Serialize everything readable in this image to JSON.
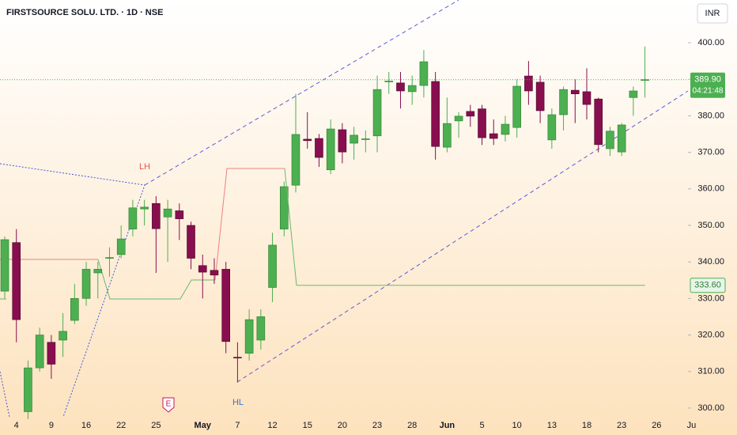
{
  "chart_data": {
    "type": "candlestick",
    "title": "FIRSTSOURCE SOLU. LTD. · 1D · NSE",
    "currency": "INR",
    "categories": [
      null,
      "4",
      null,
      null,
      "9",
      null,
      null,
      "16",
      null,
      null,
      "22",
      null,
      null,
      "25",
      null,
      null,
      null,
      "May",
      null,
      null,
      "7",
      null,
      null,
      "12",
      null,
      null,
      "15",
      null,
      null,
      "20",
      null,
      null,
      "23",
      null,
      null,
      "28",
      null,
      null,
      "Jun",
      null,
      null,
      "5",
      null,
      null,
      "10",
      null,
      null,
      "13",
      null,
      null,
      "18",
      null,
      null,
      "23",
      null,
      null,
      "26",
      null,
      null,
      "Ju"
    ],
    "open": [
      332,
      345.3,
      299,
      311,
      318,
      318.6,
      324,
      330,
      337,
      341,
      342,
      349,
      354.5,
      356,
      352.3,
      354,
      350,
      339,
      337.7,
      338,
      313.9,
      315,
      318.6,
      333,
      349,
      361,
      373.6,
      373.8,
      365.2,
      376.2,
      372.5,
      373.6,
      374.5,
      389.3,
      389,
      386.6,
      388.3,
      389.4,
      371.4,
      378.6,
      381.2,
      381.9,
      375.1,
      374.9,
      376.8,
      390.9,
      389.2,
      373.4,
      380.3,
      387,
      386.6,
      384.6,
      371,
      370.1,
      385,
      389.8,
      null,
      null,
      null,
      null
    ],
    "high": [
      347,
      349,
      313,
      322,
      320,
      326,
      334,
      340,
      340,
      344,
      350,
      357,
      357,
      358,
      357,
      356,
      351,
      342,
      341,
      340,
      318,
      327,
      327,
      348,
      362,
      386,
      381,
      375,
      379,
      378,
      377,
      376,
      391,
      392,
      392,
      391,
      398,
      392,
      385,
      381,
      383,
      383,
      379,
      380,
      390,
      395,
      391,
      382,
      388,
      390,
      393,
      385,
      377,
      378,
      388,
      399,
      null,
      null,
      null,
      null
    ],
    "low": [
      330,
      318,
      297,
      310,
      308,
      314,
      323,
      328,
      330,
      336,
      341,
      347,
      350,
      337,
      340,
      346,
      338,
      330,
      334,
      315,
      307,
      313,
      316,
      329,
      347,
      359,
      371,
      366,
      364,
      367,
      368,
      370,
      370,
      386,
      382,
      383,
      385,
      368,
      370,
      374,
      377,
      372,
      372,
      373,
      374,
      383,
      378,
      371,
      376,
      378,
      379,
      370,
      369,
      369,
      380,
      385,
      null,
      null,
      null,
      null
    ],
    "close": [
      346.1,
      324.2,
      311,
      320,
      312,
      321,
      330,
      338,
      338,
      341.2,
      346.3,
      354.8,
      355,
      349.1,
      354.5,
      351.8,
      341,
      337.2,
      336.4,
      318.2,
      313.8,
      324.2,
      325,
      344.6,
      360.6,
      374.9,
      373.2,
      368.6,
      376.4,
      370.1,
      374.7,
      373.7,
      387.2,
      389.5,
      386.8,
      388.3,
      394.8,
      371.6,
      377.9,
      379.9,
      379.9,
      374,
      373.8,
      377.7,
      388.1,
      386.8,
      381.4,
      380.3,
      387.2,
      386,
      383.1,
      372.1,
      375.8,
      377.5,
      386.8,
      389.9,
      null,
      null,
      null,
      null
    ],
    "up_color": "#4caf50",
    "down_color": "#880e4f",
    "ylim": [
      297.6,
      411.7
    ],
    "yticks": [
      {
        "value": 300,
        "label": "300.00"
      },
      {
        "value": 310,
        "label": "310.00"
      },
      {
        "value": 320,
        "label": "320.00"
      },
      {
        "value": 330,
        "label": "330.00"
      },
      {
        "value": 340,
        "label": "340.00"
      },
      {
        "value": 350,
        "label": "350.00"
      },
      {
        "value": 360,
        "label": "360.00"
      },
      {
        "value": 370,
        "label": "370.00"
      },
      {
        "value": 380,
        "label": "380.00"
      },
      {
        "value": 390,
        "label": "390.00"
      },
      {
        "value": 400,
        "label": "400.00"
      }
    ],
    "last_price": {
      "value": 389.9,
      "label": "389.90"
    },
    "countdown": "04:21:48",
    "trend_level": {
      "value": 333.6,
      "label": "333.60"
    },
    "annotations": [
      "LH",
      "HL",
      "E"
    ]
  }
}
